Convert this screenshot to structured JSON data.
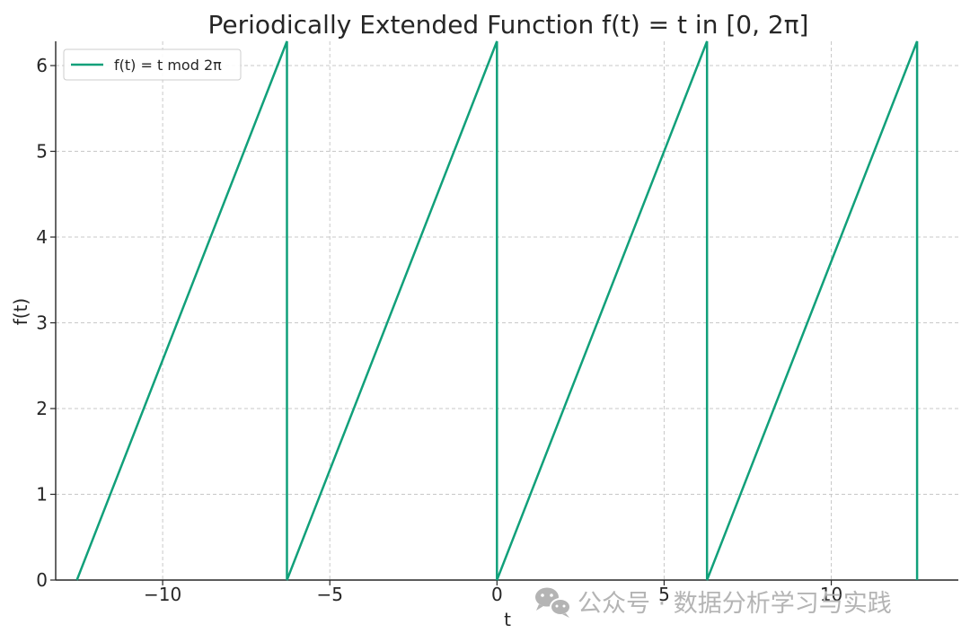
{
  "chart_data": {
    "type": "line",
    "title": "Periodically Extended Function f(t) = t in [0, 2π]",
    "xlabel": "t",
    "ylabel": "f(t)",
    "xlim": [
      -13.2,
      13.8
    ],
    "ylim": [
      0,
      6.283
    ],
    "xticks": [
      -10,
      -5,
      0,
      5,
      10
    ],
    "xtick_labels": [
      "−10",
      "−5",
      "0",
      "5",
      "10"
    ],
    "yticks": [
      0,
      1,
      2,
      3,
      4,
      5,
      6
    ],
    "ytick_labels": [
      "0",
      "1",
      "2",
      "3",
      "4",
      "5",
      "6"
    ],
    "grid": true,
    "legend_position": "top-left",
    "series": [
      {
        "name": "f(t) = t mod 2π",
        "color": "#11a07a",
        "x": [
          -12.566,
          -6.283,
          -6.283,
          0,
          0,
          6.283,
          6.283,
          12.566,
          12.566
        ],
        "y": [
          0,
          6.283,
          0,
          6.283,
          0,
          6.283,
          0,
          6.283,
          0
        ]
      }
    ]
  },
  "watermark": {
    "text": "公众号 · 数据分析学习与实践",
    "icon": "wechat-icon"
  }
}
